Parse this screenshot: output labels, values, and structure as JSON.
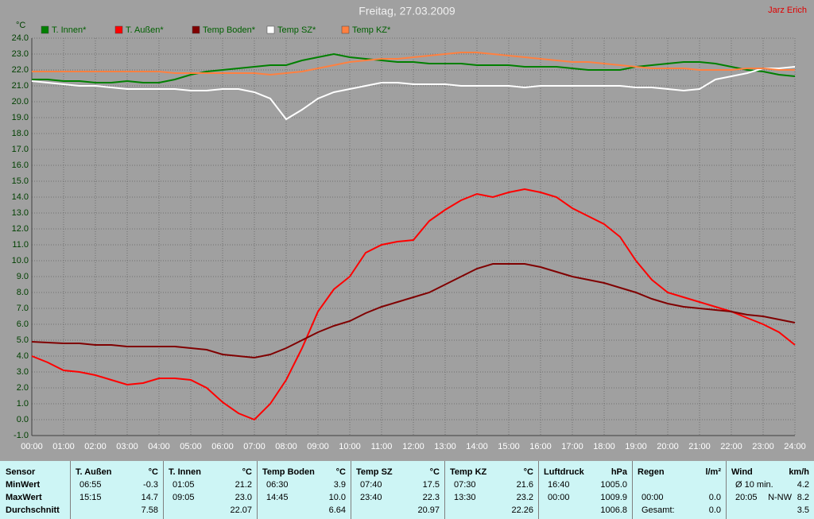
{
  "author": "Jarz Erich",
  "chart_data": {
    "type": "line",
    "title": "Freitag, 27.03.2009",
    "y_label": "°C",
    "grid": true,
    "x": [
      0,
      0.5,
      1,
      1.5,
      2,
      2.5,
      3,
      3.5,
      4,
      4.5,
      5,
      5.5,
      6,
      6.5,
      7,
      7.5,
      8,
      8.5,
      9,
      9.5,
      10,
      10.5,
      11,
      11.5,
      12,
      12.5,
      13,
      13.5,
      14,
      14.5,
      15,
      15.5,
      16,
      16.5,
      17,
      17.5,
      18,
      18.5,
      19,
      19.5,
      20,
      20.5,
      21,
      21.5,
      22,
      22.5,
      23,
      23.5,
      24
    ],
    "xlim": [
      0,
      24
    ],
    "xticks": [
      {
        "value": 0,
        "label": "00:00"
      },
      {
        "value": 1,
        "label": "01:00"
      },
      {
        "value": 2,
        "label": "02:00"
      },
      {
        "value": 3,
        "label": "03:00"
      },
      {
        "value": 4,
        "label": "04:00"
      },
      {
        "value": 5,
        "label": "05:00"
      },
      {
        "value": 6,
        "label": "06:00"
      },
      {
        "value": 7,
        "label": "07:00"
      },
      {
        "value": 8,
        "label": "08:00"
      },
      {
        "value": 9,
        "label": "09:00"
      },
      {
        "value": 10,
        "label": "10:00"
      },
      {
        "value": 11,
        "label": "11:00"
      },
      {
        "value": 12,
        "label": "12:00"
      },
      {
        "value": 13,
        "label": "13:00"
      },
      {
        "value": 14,
        "label": "14:00"
      },
      {
        "value": 15,
        "label": "15:00"
      },
      {
        "value": 16,
        "label": "16:00"
      },
      {
        "value": 17,
        "label": "17:00"
      },
      {
        "value": 18,
        "label": "18:00"
      },
      {
        "value": 19,
        "label": "19:00"
      },
      {
        "value": 20,
        "label": "20:00"
      },
      {
        "value": 21,
        "label": "21:00"
      },
      {
        "value": 22,
        "label": "22:00"
      },
      {
        "value": 23,
        "label": "23:00"
      },
      {
        "value": 24,
        "label": "24:00"
      }
    ],
    "ylim": [
      -1,
      24
    ],
    "yticks": [
      {
        "value": -1,
        "label": "-1.0"
      },
      {
        "value": 0,
        "label": "0.0"
      },
      {
        "value": 1,
        "label": "1.0"
      },
      {
        "value": 2,
        "label": "2.0"
      },
      {
        "value": 3,
        "label": "3.0"
      },
      {
        "value": 4,
        "label": "4.0"
      },
      {
        "value": 5,
        "label": "5.0"
      },
      {
        "value": 6,
        "label": "6.0"
      },
      {
        "value": 7,
        "label": "7.0"
      },
      {
        "value": 8,
        "label": "8.0"
      },
      {
        "value": 9,
        "label": "9.0"
      },
      {
        "value": 10,
        "label": "10.0"
      },
      {
        "value": 11,
        "label": "11.0"
      },
      {
        "value": 12,
        "label": "12.0"
      },
      {
        "value": 13,
        "label": "13.0"
      },
      {
        "value": 14,
        "label": "14.0"
      },
      {
        "value": 15,
        "label": "15.0"
      },
      {
        "value": 16,
        "label": "16.0"
      },
      {
        "value": 17,
        "label": "17.0"
      },
      {
        "value": 18,
        "label": "18.0"
      },
      {
        "value": 19,
        "label": "19.0"
      },
      {
        "value": 20,
        "label": "20.0"
      },
      {
        "value": 21,
        "label": "21.0"
      },
      {
        "value": 22,
        "label": "22.0"
      },
      {
        "value": 23,
        "label": "23.0"
      },
      {
        "value": 24,
        "label": "24.0"
      }
    ],
    "series": [
      {
        "name": "T. Innen*",
        "color": "#008000",
        "values": [
          21.4,
          21.4,
          21.3,
          21.3,
          21.2,
          21.2,
          21.3,
          21.2,
          21.2,
          21.4,
          21.7,
          21.9,
          22.0,
          22.1,
          22.2,
          22.3,
          22.3,
          22.6,
          22.8,
          23.0,
          22.8,
          22.7,
          22.6,
          22.5,
          22.5,
          22.4,
          22.4,
          22.4,
          22.3,
          22.3,
          22.3,
          22.2,
          22.2,
          22.2,
          22.1,
          22.0,
          22.0,
          22.0,
          22.2,
          22.3,
          22.4,
          22.5,
          22.5,
          22.4,
          22.2,
          22.0,
          21.9,
          21.7,
          21.6
        ]
      },
      {
        "name": "T. Außen*",
        "color": "#ff0000",
        "values": [
          4.0,
          3.6,
          3.1,
          3.0,
          2.8,
          2.5,
          2.2,
          2.3,
          2.6,
          2.6,
          2.5,
          2.0,
          1.1,
          0.4,
          0.0,
          1.0,
          2.5,
          4.5,
          6.8,
          8.2,
          9.0,
          10.5,
          11.0,
          11.2,
          11.3,
          12.5,
          13.2,
          13.8,
          14.2,
          14.0,
          14.3,
          14.5,
          14.3,
          14.0,
          13.3,
          12.8,
          12.3,
          11.5,
          10.0,
          8.8,
          8.0,
          7.7,
          7.4,
          7.1,
          6.8,
          6.4,
          6.0,
          5.5,
          4.7
        ]
      },
      {
        "name": "Temp Boden*",
        "color": "#800000",
        "values": [
          4.9,
          4.85,
          4.8,
          4.8,
          4.7,
          4.7,
          4.6,
          4.6,
          4.6,
          4.6,
          4.5,
          4.4,
          4.1,
          4.0,
          3.9,
          4.1,
          4.5,
          5.0,
          5.5,
          5.9,
          6.2,
          6.7,
          7.1,
          7.4,
          7.7,
          8.0,
          8.5,
          9.0,
          9.5,
          9.8,
          9.8,
          9.8,
          9.6,
          9.3,
          9.0,
          8.8,
          8.6,
          8.3,
          8.0,
          7.6,
          7.3,
          7.1,
          7.0,
          6.9,
          6.8,
          6.6,
          6.5,
          6.3,
          6.1
        ]
      },
      {
        "name": "Temp SZ*",
        "color": "#ffffff",
        "values": [
          21.3,
          21.2,
          21.1,
          21.0,
          21.0,
          20.9,
          20.8,
          20.8,
          20.8,
          20.8,
          20.7,
          20.7,
          20.8,
          20.8,
          20.6,
          20.2,
          18.9,
          19.5,
          20.2,
          20.6,
          20.8,
          21.0,
          21.2,
          21.2,
          21.1,
          21.1,
          21.1,
          21.0,
          21.0,
          21.0,
          21.0,
          20.9,
          21.0,
          21.0,
          21.0,
          21.0,
          21.0,
          21.0,
          20.9,
          20.9,
          20.8,
          20.7,
          20.8,
          21.4,
          21.6,
          21.8,
          22.1,
          22.1,
          22.2
        ]
      },
      {
        "name": "Temp KZ*",
        "color": "#ff8040",
        "values": [
          21.9,
          21.9,
          21.9,
          21.9,
          21.9,
          21.9,
          21.9,
          21.9,
          21.9,
          21.8,
          21.8,
          21.8,
          21.8,
          21.8,
          21.8,
          21.7,
          21.8,
          21.9,
          22.1,
          22.3,
          22.5,
          22.6,
          22.7,
          22.7,
          22.8,
          22.9,
          23.0,
          23.1,
          23.1,
          23.0,
          22.9,
          22.8,
          22.7,
          22.6,
          22.5,
          22.5,
          22.4,
          22.3,
          22.2,
          22.1,
          22.1,
          22.1,
          22.0,
          22.0,
          22.0,
          22.1,
          22.1,
          22.0,
          22.0
        ]
      }
    ]
  },
  "table": {
    "row_labels": [
      "Sensor",
      "MinWert",
      "MaxWert",
      "Durchschnitt"
    ],
    "columns": [
      {
        "name": "T. Außen",
        "unit": "°C",
        "rows": [
          {
            "time": "06:55",
            "value": "-0.3"
          },
          {
            "time": "15:15",
            "value": "14.7"
          },
          {
            "value": "7.58"
          }
        ]
      },
      {
        "name": "T. Innen",
        "unit": "°C",
        "rows": [
          {
            "time": "01:05",
            "value": "21.2"
          },
          {
            "time": "09:05",
            "value": "23.0"
          },
          {
            "value": "22.07"
          }
        ]
      },
      {
        "name": "Temp Boden",
        "unit": "°C",
        "rows": [
          {
            "time": "06:30",
            "value": "3.9"
          },
          {
            "time": "14:45",
            "value": "10.0"
          },
          {
            "value": "6.64"
          }
        ]
      },
      {
        "name": "Temp SZ",
        "unit": "°C",
        "rows": [
          {
            "time": "07:40",
            "value": "17.5"
          },
          {
            "time": "23:40",
            "value": "22.3"
          },
          {
            "value": "20.97"
          }
        ]
      },
      {
        "name": "Temp KZ",
        "unit": "°C",
        "rows": [
          {
            "time": "07:30",
            "value": "21.6"
          },
          {
            "time": "13:30",
            "value": "23.2"
          },
          {
            "value": "22.26"
          }
        ]
      },
      {
        "name": "Luftdruck",
        "unit": "hPa",
        "rows": [
          {
            "time": "16:40",
            "value": "1005.0"
          },
          {
            "time": "00:00",
            "value": "1009.9"
          },
          {
            "value": "1006.8"
          }
        ]
      },
      {
        "name": "Regen",
        "unit": "l/m²",
        "rows": [
          null,
          {
            "time": "00:00",
            "value": "0.0"
          },
          {
            "time": "Gesamt:",
            "value": "0.0"
          }
        ]
      },
      {
        "name": "Wind",
        "unit": "km/h",
        "rows": [
          {
            "time": "Ø 10 min.",
            "value": "4.2"
          },
          {
            "time": "20:05",
            "dir": "N-NW",
            "value": "8.2"
          },
          {
            "value": "3.5"
          }
        ]
      }
    ]
  }
}
